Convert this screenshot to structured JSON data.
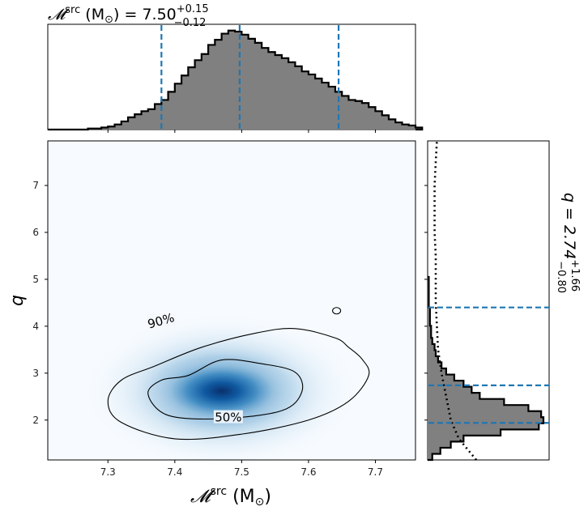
{
  "chart_data": [
    {
      "type": "histogram",
      "panel": "top-marginal",
      "title_main": "𝓜",
      "title_sup": "src",
      "title_unit": " (M",
      "title_sun": "⊙",
      "title_eq": ") = 7.50",
      "title_plus": "+0.15",
      "title_minus": "−0.12",
      "xlim": [
        7.21,
        7.76
      ],
      "bins_start": 7.27,
      "bin_width": 0.01,
      "counts": [
        0.01,
        0.01,
        0.02,
        0.03,
        0.05,
        0.08,
        0.12,
        0.15,
        0.18,
        0.2,
        0.25,
        0.29,
        0.37,
        0.45,
        0.53,
        0.61,
        0.68,
        0.74,
        0.83,
        0.88,
        0.94,
        0.97,
        0.96,
        0.93,
        0.89,
        0.85,
        0.8,
        0.76,
        0.73,
        0.7,
        0.66,
        0.62,
        0.57,
        0.54,
        0.5,
        0.46,
        0.42,
        0.37,
        0.33,
        0.29,
        0.28,
        0.26,
        0.22,
        0.18,
        0.14,
        0.1,
        0.07,
        0.05,
        0.04,
        0.02
      ],
      "quantile_lines": [
        7.38,
        7.497,
        7.645
      ],
      "line_color": "#1f77b4"
    },
    {
      "type": "heatmap",
      "panel": "joint",
      "xlabel_main": "𝓜",
      "xlabel_sup": "src",
      "xlabel_unit": " (M",
      "xlabel_sun": "⊙",
      "xlabel_close": ")",
      "ylabel": "q",
      "xlim": [
        7.21,
        7.76
      ],
      "ylim": [
        1.15,
        7.95
      ],
      "xticks": [
        "7.3",
        "7.4",
        "7.5",
        "7.6",
        "7.7"
      ],
      "yticks": [
        "2",
        "3",
        "4",
        "5",
        "6",
        "7"
      ],
      "peak": [
        7.47,
        2.62
      ],
      "contours": [
        {
          "level": "90%",
          "points": [
            [
              7.37,
              3.15
            ],
            [
              7.44,
              3.55
            ],
            [
              7.52,
              3.85
            ],
            [
              7.58,
              3.95
            ],
            [
              7.64,
              3.75
            ],
            [
              7.66,
              3.55
            ],
            [
              7.68,
              3.3
            ],
            [
              7.69,
              2.95
            ],
            [
              7.66,
              2.4
            ],
            [
              7.6,
              2.0
            ],
            [
              7.5,
              1.7
            ],
            [
              7.4,
              1.6
            ],
            [
              7.32,
              1.95
            ],
            [
              7.3,
              2.4
            ],
            [
              7.32,
              2.85
            ]
          ],
          "label_x": 7.38,
          "label_y": 4.08
        },
        {
          "level": "50%",
          "points": [
            [
              7.42,
              2.95
            ],
            [
              7.47,
              3.28
            ],
            [
              7.53,
              3.2
            ],
            [
              7.58,
              3.02
            ],
            [
              7.59,
              2.6
            ],
            [
              7.56,
              2.2
            ],
            [
              7.47,
              2.03
            ],
            [
              7.39,
              2.1
            ],
            [
              7.36,
              2.55
            ],
            [
              7.38,
              2.85
            ]
          ],
          "label_x": 7.48,
          "label_y": 2.02
        }
      ]
    },
    {
      "type": "histogram",
      "panel": "right-marginal",
      "title_main": "q = 2.74",
      "title_plus": "+1.66",
      "title_minus": "−0.80",
      "ylim": [
        1.15,
        7.95
      ],
      "bins_start": 1.15,
      "bin_width": 0.13,
      "counts": [
        0.04,
        0.11,
        0.2,
        0.31,
        0.63,
        0.96,
        1.0,
        0.98,
        0.87,
        0.66,
        0.45,
        0.38,
        0.31,
        0.23,
        0.16,
        0.12,
        0.09,
        0.07,
        0.06,
        0.04,
        0.03,
        0.03,
        0.02,
        0.02,
        0.02,
        0.01,
        0.01,
        0.01,
        0.01,
        0.01
      ],
      "quantile_lines": [
        1.94,
        2.74,
        4.4
      ],
      "prior_curve": [
        [
          1.15,
          0.42
        ],
        [
          1.6,
          0.27
        ],
        [
          2.0,
          0.2
        ],
        [
          2.5,
          0.16
        ],
        [
          3.0,
          0.12
        ],
        [
          3.5,
          0.09
        ],
        [
          4.0,
          0.08
        ],
        [
          4.5,
          0.07
        ],
        [
          5.0,
          0.07
        ],
        [
          5.5,
          0.07
        ],
        [
          6.0,
          0.06
        ],
        [
          6.5,
          0.06
        ],
        [
          7.0,
          0.06
        ],
        [
          7.5,
          0.07
        ],
        [
          7.95,
          0.08
        ]
      ],
      "line_color": "#1f77b4"
    }
  ]
}
